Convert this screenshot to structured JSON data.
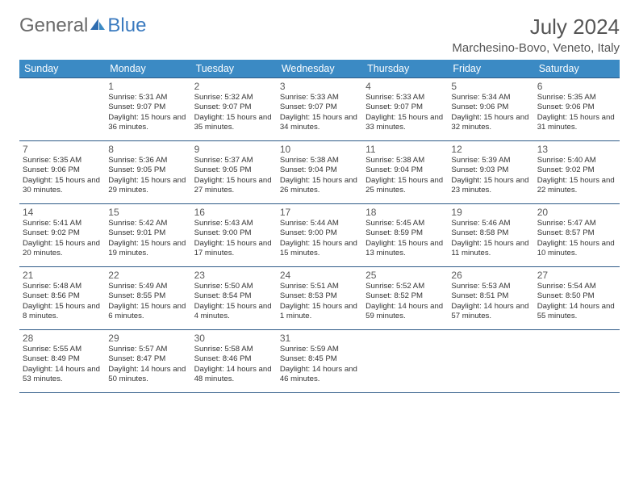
{
  "brand": {
    "part1": "General",
    "part2": "Blue"
  },
  "title": "July 2024",
  "location": "Marchesino-Bovo, Veneto, Italy",
  "colors": {
    "header_bg": "#3b8ac4",
    "header_text": "#ffffff",
    "row_border": "#2f5b88",
    "brand_blue": "#3a7abf",
    "text_gray": "#555555"
  },
  "day_headers": [
    "Sunday",
    "Monday",
    "Tuesday",
    "Wednesday",
    "Thursday",
    "Friday",
    "Saturday"
  ],
  "weeks": [
    [
      {
        "num": "",
        "sunrise": "",
        "sunset": "",
        "daylight": ""
      },
      {
        "num": "1",
        "sunrise": "Sunrise: 5:31 AM",
        "sunset": "Sunset: 9:07 PM",
        "daylight": "Daylight: 15 hours and 36 minutes."
      },
      {
        "num": "2",
        "sunrise": "Sunrise: 5:32 AM",
        "sunset": "Sunset: 9:07 PM",
        "daylight": "Daylight: 15 hours and 35 minutes."
      },
      {
        "num": "3",
        "sunrise": "Sunrise: 5:33 AM",
        "sunset": "Sunset: 9:07 PM",
        "daylight": "Daylight: 15 hours and 34 minutes."
      },
      {
        "num": "4",
        "sunrise": "Sunrise: 5:33 AM",
        "sunset": "Sunset: 9:07 PM",
        "daylight": "Daylight: 15 hours and 33 minutes."
      },
      {
        "num": "5",
        "sunrise": "Sunrise: 5:34 AM",
        "sunset": "Sunset: 9:06 PM",
        "daylight": "Daylight: 15 hours and 32 minutes."
      },
      {
        "num": "6",
        "sunrise": "Sunrise: 5:35 AM",
        "sunset": "Sunset: 9:06 PM",
        "daylight": "Daylight: 15 hours and 31 minutes."
      }
    ],
    [
      {
        "num": "7",
        "sunrise": "Sunrise: 5:35 AM",
        "sunset": "Sunset: 9:06 PM",
        "daylight": "Daylight: 15 hours and 30 minutes."
      },
      {
        "num": "8",
        "sunrise": "Sunrise: 5:36 AM",
        "sunset": "Sunset: 9:05 PM",
        "daylight": "Daylight: 15 hours and 29 minutes."
      },
      {
        "num": "9",
        "sunrise": "Sunrise: 5:37 AM",
        "sunset": "Sunset: 9:05 PM",
        "daylight": "Daylight: 15 hours and 27 minutes."
      },
      {
        "num": "10",
        "sunrise": "Sunrise: 5:38 AM",
        "sunset": "Sunset: 9:04 PM",
        "daylight": "Daylight: 15 hours and 26 minutes."
      },
      {
        "num": "11",
        "sunrise": "Sunrise: 5:38 AM",
        "sunset": "Sunset: 9:04 PM",
        "daylight": "Daylight: 15 hours and 25 minutes."
      },
      {
        "num": "12",
        "sunrise": "Sunrise: 5:39 AM",
        "sunset": "Sunset: 9:03 PM",
        "daylight": "Daylight: 15 hours and 23 minutes."
      },
      {
        "num": "13",
        "sunrise": "Sunrise: 5:40 AM",
        "sunset": "Sunset: 9:02 PM",
        "daylight": "Daylight: 15 hours and 22 minutes."
      }
    ],
    [
      {
        "num": "14",
        "sunrise": "Sunrise: 5:41 AM",
        "sunset": "Sunset: 9:02 PM",
        "daylight": "Daylight: 15 hours and 20 minutes."
      },
      {
        "num": "15",
        "sunrise": "Sunrise: 5:42 AM",
        "sunset": "Sunset: 9:01 PM",
        "daylight": "Daylight: 15 hours and 19 minutes."
      },
      {
        "num": "16",
        "sunrise": "Sunrise: 5:43 AM",
        "sunset": "Sunset: 9:00 PM",
        "daylight": "Daylight: 15 hours and 17 minutes."
      },
      {
        "num": "17",
        "sunrise": "Sunrise: 5:44 AM",
        "sunset": "Sunset: 9:00 PM",
        "daylight": "Daylight: 15 hours and 15 minutes."
      },
      {
        "num": "18",
        "sunrise": "Sunrise: 5:45 AM",
        "sunset": "Sunset: 8:59 PM",
        "daylight": "Daylight: 15 hours and 13 minutes."
      },
      {
        "num": "19",
        "sunrise": "Sunrise: 5:46 AM",
        "sunset": "Sunset: 8:58 PM",
        "daylight": "Daylight: 15 hours and 11 minutes."
      },
      {
        "num": "20",
        "sunrise": "Sunrise: 5:47 AM",
        "sunset": "Sunset: 8:57 PM",
        "daylight": "Daylight: 15 hours and 10 minutes."
      }
    ],
    [
      {
        "num": "21",
        "sunrise": "Sunrise: 5:48 AM",
        "sunset": "Sunset: 8:56 PM",
        "daylight": "Daylight: 15 hours and 8 minutes."
      },
      {
        "num": "22",
        "sunrise": "Sunrise: 5:49 AM",
        "sunset": "Sunset: 8:55 PM",
        "daylight": "Daylight: 15 hours and 6 minutes."
      },
      {
        "num": "23",
        "sunrise": "Sunrise: 5:50 AM",
        "sunset": "Sunset: 8:54 PM",
        "daylight": "Daylight: 15 hours and 4 minutes."
      },
      {
        "num": "24",
        "sunrise": "Sunrise: 5:51 AM",
        "sunset": "Sunset: 8:53 PM",
        "daylight": "Daylight: 15 hours and 1 minute."
      },
      {
        "num": "25",
        "sunrise": "Sunrise: 5:52 AM",
        "sunset": "Sunset: 8:52 PM",
        "daylight": "Daylight: 14 hours and 59 minutes."
      },
      {
        "num": "26",
        "sunrise": "Sunrise: 5:53 AM",
        "sunset": "Sunset: 8:51 PM",
        "daylight": "Daylight: 14 hours and 57 minutes."
      },
      {
        "num": "27",
        "sunrise": "Sunrise: 5:54 AM",
        "sunset": "Sunset: 8:50 PM",
        "daylight": "Daylight: 14 hours and 55 minutes."
      }
    ],
    [
      {
        "num": "28",
        "sunrise": "Sunrise: 5:55 AM",
        "sunset": "Sunset: 8:49 PM",
        "daylight": "Daylight: 14 hours and 53 minutes."
      },
      {
        "num": "29",
        "sunrise": "Sunrise: 5:57 AM",
        "sunset": "Sunset: 8:47 PM",
        "daylight": "Daylight: 14 hours and 50 minutes."
      },
      {
        "num": "30",
        "sunrise": "Sunrise: 5:58 AM",
        "sunset": "Sunset: 8:46 PM",
        "daylight": "Daylight: 14 hours and 48 minutes."
      },
      {
        "num": "31",
        "sunrise": "Sunrise: 5:59 AM",
        "sunset": "Sunset: 8:45 PM",
        "daylight": "Daylight: 14 hours and 46 minutes."
      },
      {
        "num": "",
        "sunrise": "",
        "sunset": "",
        "daylight": ""
      },
      {
        "num": "",
        "sunrise": "",
        "sunset": "",
        "daylight": ""
      },
      {
        "num": "",
        "sunrise": "",
        "sunset": "",
        "daylight": ""
      }
    ]
  ]
}
